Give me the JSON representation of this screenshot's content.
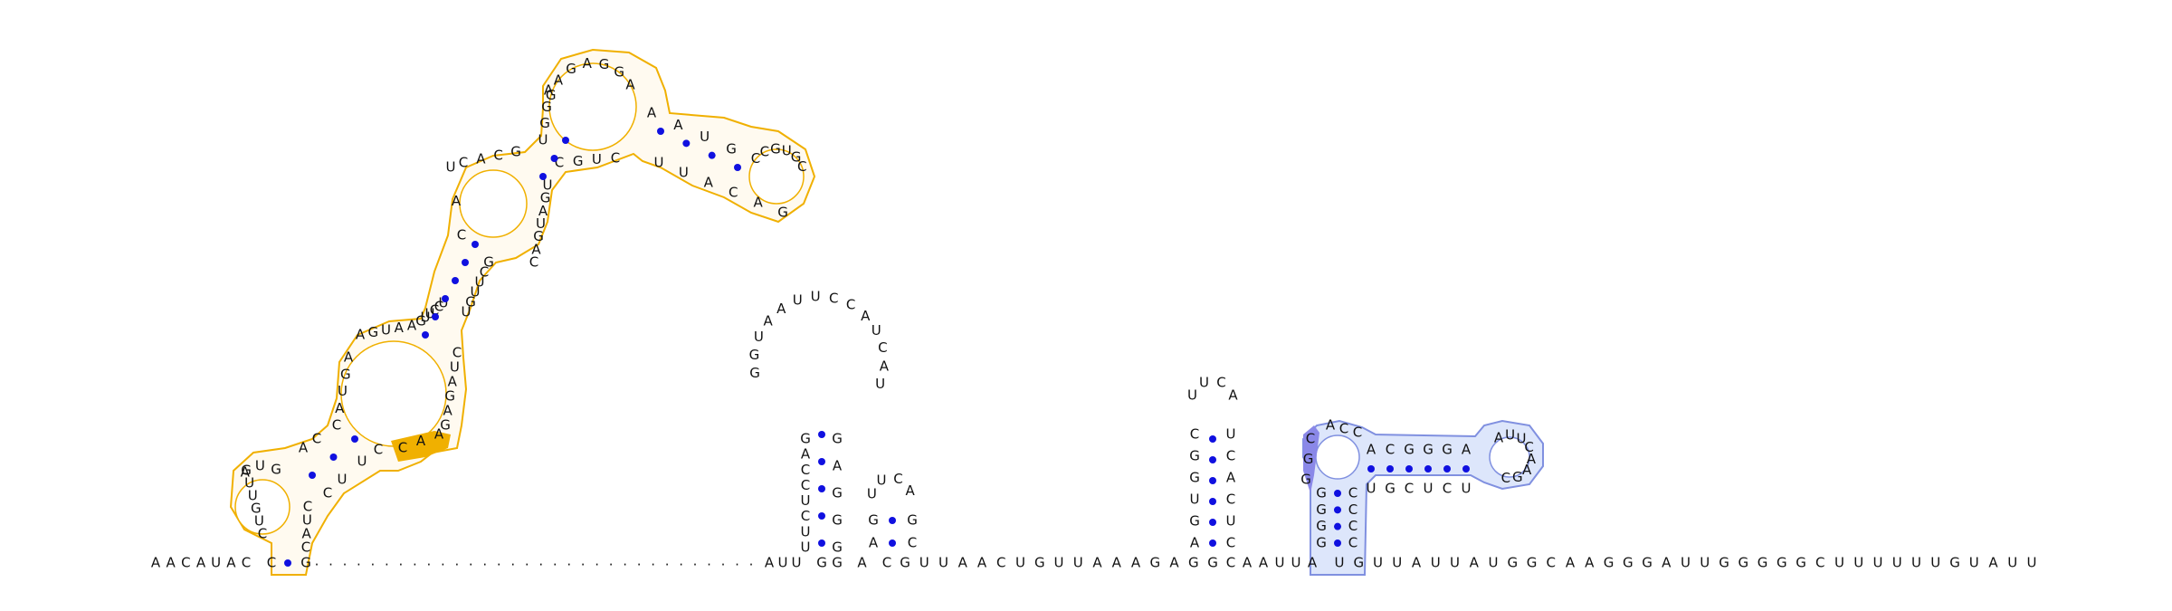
{
  "colors": {
    "base_pair": "#1010e0",
    "backbone": "#333333",
    "highlight_orange": "#f0b000",
    "orange_fill": "#fffaf0",
    "highlight_blue": "#8090e0",
    "blue_fill": "#dde6fb",
    "blue_strong": "#8a88e8"
  },
  "baseline_left": "AACAUAC",
  "baseline_left_tail": "G",
  "hp1_5p_up": "CUGUUG",
  "hp1_top": "AUG",
  "hp1_3p_down": "CUAC",
  "stemA_5p": "AC",
  "stemA_3p": "CU",
  "loopB_left": "CAUGA",
  "loopB_top": "AGUAA",
  "loopB_right": "CUAGAG",
  "loopB_orange": "CAA",
  "stemC_5p": "UCCUUG",
  "stemC_3p": "GCUUGU",
  "loopD_left": "CAU",
  "loopD_top": "CACG",
  "loopD_right": "CAGUAGU",
  "loopE_left": "UGGA",
  "loopE_top": "GAGAGGA",
  "hp2_stem_5p": "AAUG",
  "hp2_top": "CCGUGC",
  "hp2_bottom": "GACAUU",
  "join_CGUC": "CGUC",
  "dots_region": "................................",
  "mid_left": "AUU",
  "hp3_5p": "UUCUCCAG",
  "hp3_loop": "GGUAAUUCCAUCAU",
  "hp3_3p": "GAGGG",
  "gac": "GAC",
  "hp4_5p": "GA",
  "hp4_loop": "UUCA",
  "hp4_3p": "GC",
  "mid_right": "GUUAACUGUUAAAGAGG",
  "hp5_5p": "AGUGGC",
  "hp5_loop": "UUCA",
  "hp5_3p": "UCACUC",
  "after_hp5": "CAAUUA",
  "hp6_5p_stem": "GGGG",
  "hp6_strong": "GGC",
  "hp6_top": "ACC",
  "hp6_inner_top": "ACGGGA",
  "hp6_loop": "AUUCAAGC",
  "hp6_inner_bottom": "UCUCGU",
  "hp6_3p_stem": "CCCC",
  "tail_right": "UGUUAUUAUGGCAAGGGAUUGGGGGCUUUUUUGUAUU"
}
